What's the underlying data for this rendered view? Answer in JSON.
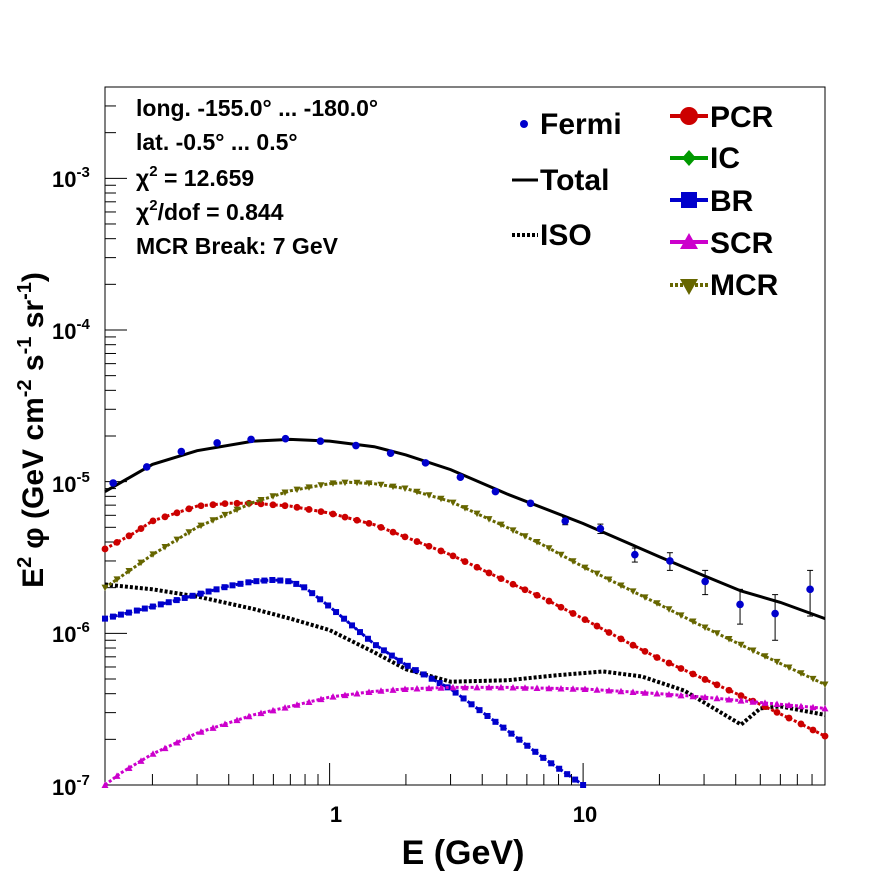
{
  "chart_data": {
    "type": "line",
    "xscale": "log",
    "yscale": "log",
    "xlim": [
      0.13,
      90
    ],
    "ylim": [
      1e-07,
      0.004
    ],
    "xlabel": "E (GeV)",
    "ylabel_parts": {
      "E": "E",
      "two": "2",
      "phi": "φ (GeV cm",
      "m2": "-2",
      "s": " s",
      "m1a": "-1",
      "sr": " sr",
      "m1b": "-1",
      "close": ")"
    },
    "x_tick_labels": [
      {
        "value": 1,
        "label": "1"
      },
      {
        "value": 10,
        "label": "10"
      }
    ],
    "y_tick_labels": [
      {
        "value": 1e-07,
        "base": "10",
        "exp": "-7"
      },
      {
        "value": 1e-06,
        "base": "10",
        "exp": "-6"
      },
      {
        "value": 1e-05,
        "base": "10",
        "exp": "-5"
      },
      {
        "value": 0.0001,
        "base": "10",
        "exp": "-4"
      },
      {
        "value": 0.001,
        "base": "10",
        "exp": "-3"
      }
    ],
    "info": {
      "longitude": "long. -155.0° ... -180.0°",
      "latitude": "lat. -0.5° ... 0.5°",
      "chi2_sym": "χ",
      "chi2_exp": "2",
      "chi2_val": " = 12.659",
      "chi2dof_sym": "χ",
      "chi2dof_exp": "2",
      "chi2dof_val": "/dof = 0.844",
      "mcr_break": "MCR Break:  7 GeV"
    },
    "legend_left": [
      {
        "name": "Fermi",
        "style": "points",
        "color": "#0000cc"
      },
      {
        "name": "Total",
        "style": "solid",
        "color": "#000000"
      },
      {
        "name": "ISO",
        "style": "dotted",
        "color": "#000000"
      }
    ],
    "legend_right": [
      {
        "name": "PCR",
        "marker": "circle",
        "color": "#cc0000"
      },
      {
        "name": "IC",
        "marker": "diamond",
        "color": "#009900"
      },
      {
        "name": "BR",
        "marker": "square",
        "color": "#0000cc"
      },
      {
        "name": "SCR",
        "marker": "triangle-up",
        "color": "#cc00cc"
      },
      {
        "name": "MCR",
        "marker": "triangle-down",
        "color": "#666600"
      }
    ],
    "fermi": {
      "x": [
        0.14,
        0.19,
        0.26,
        0.36,
        0.49,
        0.67,
        0.92,
        1.27,
        1.74,
        2.39,
        3.28,
        4.51,
        6.2,
        8.5,
        11.7,
        16.0,
        22.0,
        30.3,
        41.6,
        57.2,
        78.6
      ],
      "y": [
        9.8e-06,
        1.25e-05,
        1.58e-05,
        1.8e-05,
        1.9e-05,
        1.92e-05,
        1.85e-05,
        1.73e-05,
        1.54e-05,
        1.33e-05,
        1.07e-05,
        8.6e-06,
        7.2e-06,
        5.5e-06,
        4.9e-06,
        3.3e-06,
        3e-06,
        2.2e-06,
        1.55e-06,
        1.35e-06,
        1.95e-06
      ],
      "err": [
        2.5e-07,
        2.5e-07,
        3e-07,
        3e-07,
        3e-07,
        3e-07,
        3e-07,
        3e-07,
        3e-07,
        3e-07,
        2.5e-07,
        2.5e-07,
        2.5e-07,
        3e-07,
        3.5e-07,
        3.5e-07,
        4e-07,
        4e-07,
        4e-07,
        4.5e-07,
        6.5e-07
      ]
    },
    "series": [
      {
        "name": "Total",
        "color": "#000000",
        "style": "solid",
        "x": [
          0.13,
          0.2,
          0.3,
          0.5,
          0.7,
          1.0,
          1.5,
          2.0,
          3.0,
          5.0,
          10,
          20,
          30,
          42,
          60,
          90
        ],
        "y": [
          8.6e-06,
          1.3e-05,
          1.6e-05,
          1.85e-05,
          1.9e-05,
          1.85e-05,
          1.7e-05,
          1.5e-05,
          1.2e-05,
          8.3e-06,
          5.3e-06,
          3.2e-06,
          2.4e-06,
          1.9e-06,
          1.6e-06,
          1.25e-06
        ]
      },
      {
        "name": "ISO",
        "color": "#000000",
        "style": "dotted",
        "x": [
          0.13,
          0.2,
          0.3,
          0.5,
          0.7,
          1.0,
          1.5,
          2.0,
          3.0,
          5.0,
          8.0,
          12,
          17,
          25,
          35,
          42,
          50,
          60,
          90
        ],
        "y": [
          2.1e-06,
          1.95e-06,
          1.75e-06,
          1.45e-06,
          1.25e-06,
          1.05e-06,
          7.5e-07,
          5.8e-07,
          4.8e-07,
          4.9e-07,
          5.3e-07,
          5.6e-07,
          5.2e-07,
          4.2e-07,
          3e-07,
          2.5e-07,
          3.2e-07,
          3.3e-07,
          2.9e-07
        ]
      },
      {
        "name": "PCR",
        "color": "#cc0000",
        "style": "markers",
        "marker": "circle",
        "x": [
          0.13,
          0.17,
          0.2,
          0.3,
          0.4,
          0.5,
          0.7,
          1.0,
          1.5,
          2.0,
          3.0,
          5.0,
          7.0,
          10,
          15,
          20,
          30,
          50,
          70,
          90
        ],
        "y": [
          3.6e-06,
          4.6e-06,
          5.5e-06,
          6.9e-06,
          7.2e-06,
          7.2e-06,
          6.9e-06,
          6.2e-06,
          5.2e-06,
          4.3e-06,
          3.3e-06,
          2.2e-06,
          1.7e-06,
          1.25e-06,
          8.7e-07,
          6.8e-07,
          5e-07,
          3.4e-07,
          2.6e-07,
          2.1e-07
        ]
      },
      {
        "name": "BR",
        "color": "#0000cc",
        "style": "markers",
        "marker": "square",
        "x": [
          0.13,
          0.2,
          0.3,
          0.4,
          0.5,
          0.6,
          0.7,
          0.8,
          1.0,
          1.5,
          2.0,
          3.0,
          5.0,
          7.0,
          10
        ],
        "y": [
          1.25e-06,
          1.5e-06,
          1.8e-06,
          2.05e-06,
          2.2e-06,
          2.25e-06,
          2.2e-06,
          2e-06,
          1.5e-06,
          8.5e-07,
          6.2e-07,
          4.3e-07,
          2.3e-07,
          1.5e-07,
          1e-07
        ]
      },
      {
        "name": "SCR",
        "color": "#cc00cc",
        "style": "markers",
        "marker": "triangle-up",
        "x": [
          0.13,
          0.15,
          0.2,
          0.3,
          0.5,
          0.7,
          1.0,
          1.5,
          2.0,
          3.0,
          5.0,
          10,
          20,
          30,
          50,
          90
        ],
        "y": [
          1e-07,
          1.2e-07,
          1.6e-07,
          2.2e-07,
          2.9e-07,
          3.3e-07,
          3.8e-07,
          4.15e-07,
          4.3e-07,
          4.4e-07,
          4.4e-07,
          4.3e-07,
          4e-07,
          3.8e-07,
          3.5e-07,
          3.2e-07
        ]
      },
      {
        "name": "MCR",
        "color": "#666600",
        "style": "markers",
        "marker": "triangle-down",
        "x": [
          0.13,
          0.2,
          0.3,
          0.5,
          0.7,
          1.0,
          1.2,
          1.5,
          2.0,
          3.0,
          5.0,
          7.0,
          10,
          20,
          30,
          50,
          90
        ],
        "y": [
          2e-06,
          3.3e-06,
          5e-06,
          7.3e-06,
          8.7e-06,
          9.7e-06,
          9.9e-06,
          9.7e-06,
          9e-06,
          7.4e-06,
          5e-06,
          3.8e-06,
          2.75e-06,
          1.55e-06,
          1.1e-06,
          7.3e-07,
          4.6e-07
        ]
      }
    ]
  }
}
